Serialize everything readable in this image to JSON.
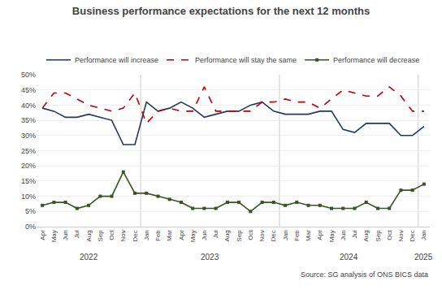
{
  "chart_data": {
    "type": "line",
    "title": "Business performance expectations for the next 12 months",
    "categories": [
      "Apr",
      "May",
      "Jun",
      "Jul",
      "Aug",
      "Sep",
      "Oct",
      "Nov",
      "Dec",
      "Jan",
      "Feb",
      "Mar",
      "Apr",
      "May",
      "Jun",
      "Jul",
      "Aug",
      "Sep",
      "Oct",
      "Nov",
      "Dec",
      "Jan",
      "Feb",
      "Mar",
      "Apr",
      "May",
      "Jun",
      "Jul",
      "Aug",
      "Sep",
      "Oct",
      "Nov",
      "Dec",
      "Jan"
    ],
    "series": [
      {
        "name": "Performance will increase",
        "color": "#1F3864",
        "line_style": "solid",
        "marker": "none",
        "values": [
          39,
          38,
          36,
          36,
          37,
          36,
          35,
          27,
          27,
          41,
          38,
          39,
          41,
          39,
          36,
          37,
          38,
          38,
          40,
          41,
          38,
          37,
          37,
          37,
          38,
          38,
          32,
          31,
          34,
          34,
          34,
          30,
          30,
          33
        ]
      },
      {
        "name": "Performance will stay the same",
        "color": "#C00000",
        "line_style": "dashed",
        "marker": "none",
        "values": [
          39,
          44,
          44,
          42,
          40,
          39,
          38,
          39,
          44,
          34,
          38,
          39,
          38,
          38,
          46,
          38,
          38,
          38,
          38,
          41,
          41,
          42,
          41,
          41,
          39,
          42,
          45,
          44,
          43,
          43,
          46,
          43,
          38,
          38
        ]
      },
      {
        "name": "Performance will decrease",
        "color": "#375623",
        "line_style": "solid",
        "marker": "square",
        "values": [
          7,
          8,
          8,
          6,
          7,
          10,
          10,
          18,
          11,
          11,
          10,
          9,
          8,
          6,
          6,
          6,
          8,
          8,
          5,
          8,
          8,
          7,
          8,
          7,
          7,
          6,
          6,
          6,
          8,
          6,
          6,
          12,
          12,
          14
        ]
      }
    ],
    "annotations": [
      "2022",
      "2023",
      "2024",
      "2025",
      "Source: SG analysis of ONS BICS data"
    ],
    "ylim": [
      0,
      50
    ],
    "yticks": [
      {
        "value": 0,
        "label": "0%"
      },
      {
        "value": 5,
        "label": "5%"
      },
      {
        "value": 10,
        "label": "10%"
      },
      {
        "value": 15,
        "label": "15%"
      },
      {
        "value": 20,
        "label": "20%"
      },
      {
        "value": 25,
        "label": "25%"
      },
      {
        "value": 30,
        "label": "30%"
      },
      {
        "value": 35,
        "label": "35%"
      },
      {
        "value": 40,
        "label": "40%"
      },
      {
        "value": 45,
        "label": "45%"
      },
      {
        "value": 50,
        "label": "50%"
      }
    ],
    "grid": true,
    "legend": "top"
  }
}
